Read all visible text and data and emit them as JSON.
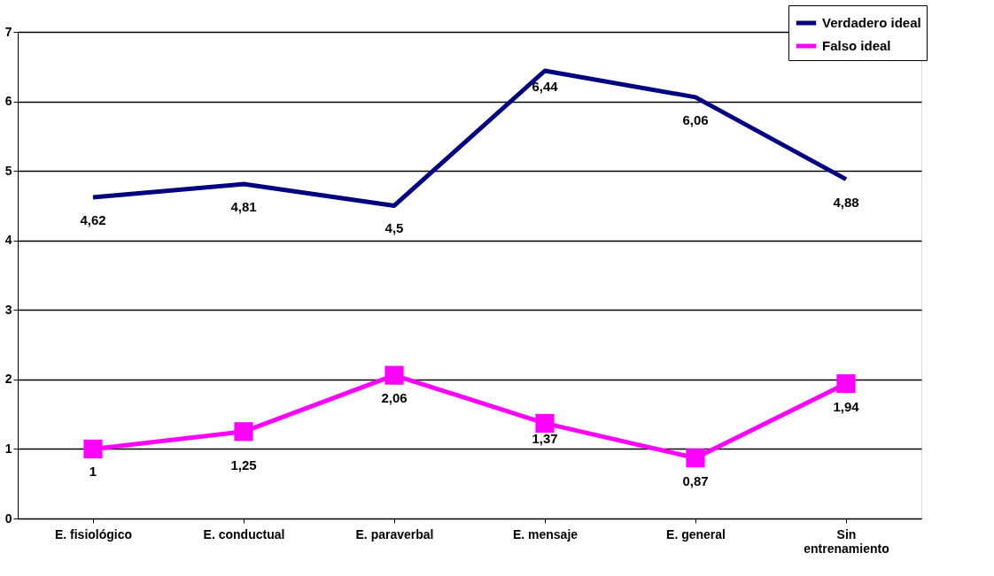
{
  "chart_data": {
    "type": "line",
    "categories": [
      "E. fisiológico",
      "E. conductual",
      "E. paraverbal",
      "E. mensaje",
      "E. general",
      "Sin entrenamiento"
    ],
    "series": [
      {
        "name": "Verdadero ideal",
        "color": "#000080",
        "values": [
          4.62,
          4.81,
          4.5,
          6.44,
          6.06,
          4.88
        ],
        "value_labels": [
          "4,62",
          "4,81",
          "4,5",
          "6,44",
          "6,06",
          "4,88"
        ],
        "marker": "none"
      },
      {
        "name": "Falso ideal",
        "color": "#ff00ff",
        "values": [
          1,
          1.25,
          2.06,
          1.37,
          0.87,
          1.94
        ],
        "value_labels": [
          "1",
          "1,25",
          "2,06",
          "1,37",
          "0,87",
          "1,94"
        ],
        "marker": "square"
      }
    ],
    "ylim": [
      0,
      7
    ],
    "yticks": [
      0,
      1,
      2,
      3,
      4,
      5,
      6,
      7
    ],
    "grid": "y",
    "legend": "top right",
    "line_style": "solid"
  }
}
